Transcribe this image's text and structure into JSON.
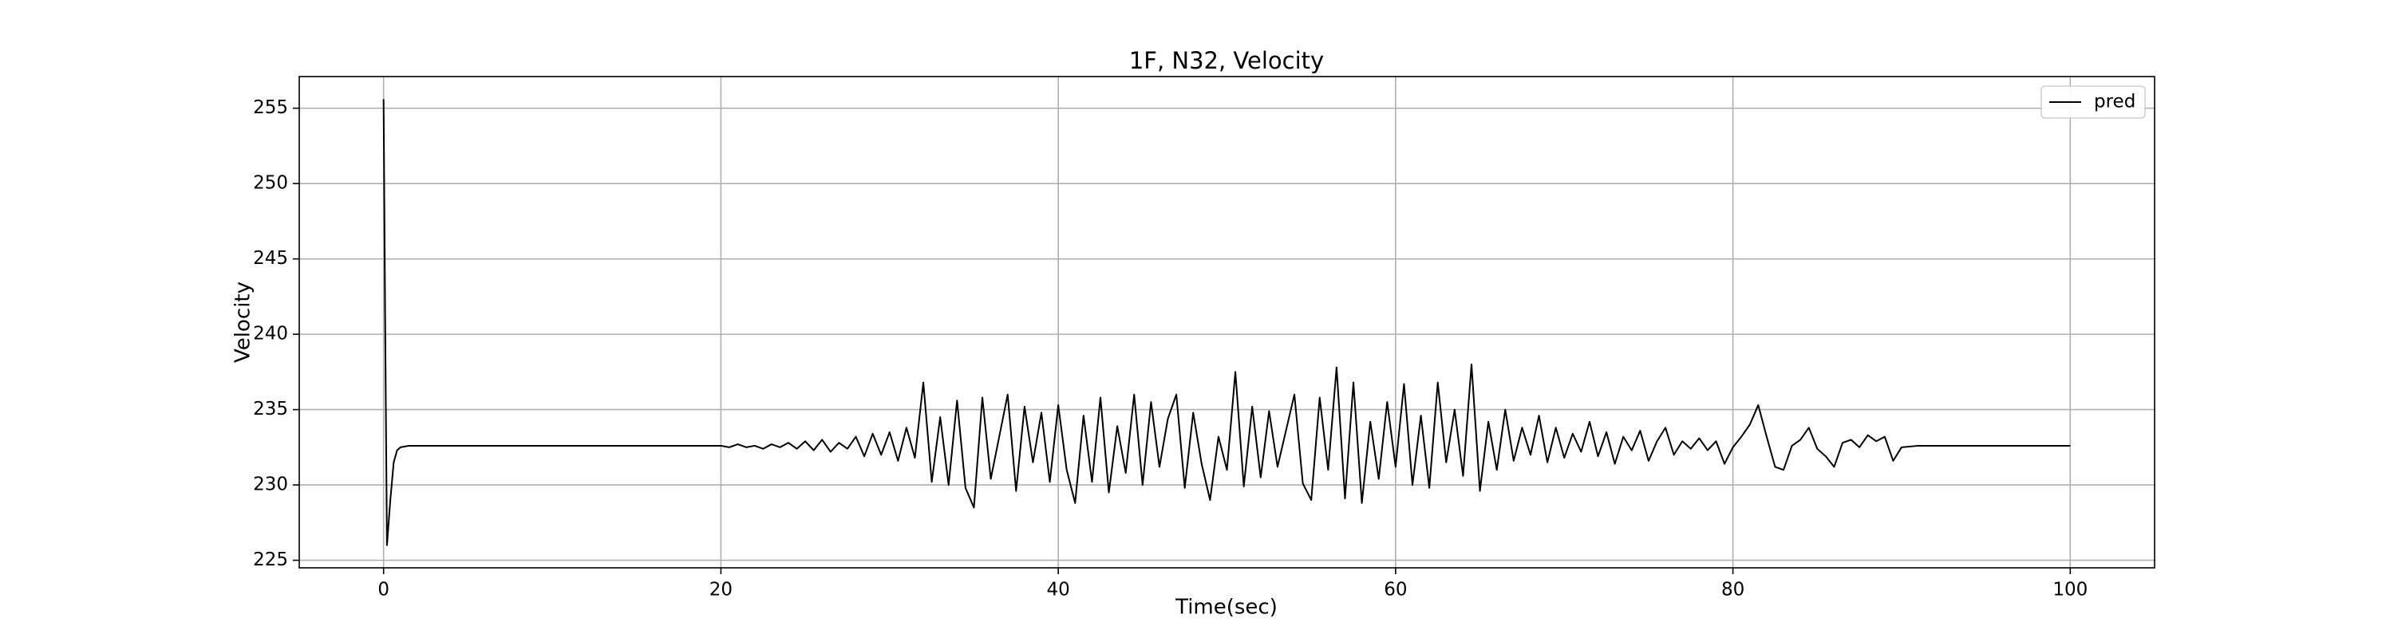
{
  "chart_data": {
    "type": "line",
    "title": "1F, N32, Velocity",
    "x_label": "Time(sec)",
    "y_label": "Velocity",
    "x": [
      0,
      0.1,
      0.2,
      0.4,
      0.6,
      0.8,
      1,
      1.5,
      2,
      5,
      10,
      15,
      20,
      20.5,
      21,
      21.5,
      22,
      22.5,
      23,
      23.5,
      24,
      24.5,
      25,
      25.5,
      26,
      26.5,
      27,
      27.5,
      28,
      28.5,
      29,
      29.5,
      30,
      30.5,
      31,
      31.5,
      32,
      32.5,
      33,
      33.5,
      34,
      34.5,
      35,
      35.5,
      36,
      36.5,
      37,
      37.5,
      38,
      38.5,
      39,
      39.5,
      40,
      40.5,
      41,
      41.5,
      42,
      42.5,
      43,
      43.5,
      44,
      44.5,
      45,
      45.5,
      46,
      46.5,
      47,
      47.5,
      48,
      48.5,
      49,
      49.5,
      50,
      50.5,
      51,
      51.5,
      52,
      52.5,
      53,
      53.5,
      54,
      54.5,
      55,
      55.5,
      56,
      56.5,
      57,
      57.5,
      58,
      58.5,
      59,
      59.5,
      60,
      60.5,
      61,
      61.5,
      62,
      62.5,
      63,
      63.5,
      64,
      64.5,
      65,
      65.5,
      66,
      66.5,
      67,
      67.5,
      68,
      68.5,
      69,
      69.5,
      70,
      70.5,
      71,
      71.5,
      72,
      72.5,
      73,
      73.5,
      74,
      74.5,
      75,
      75.5,
      76,
      76.5,
      77,
      77.5,
      78,
      78.5,
      79,
      79.5,
      80,
      80.5,
      81,
      81.5,
      82,
      82.5,
      83,
      83.5,
      84,
      84.5,
      85,
      85.5,
      86,
      86.5,
      87,
      87.5,
      88,
      88.5,
      89,
      89.5,
      90,
      91,
      95,
      100
    ],
    "series": [
      {
        "name": "pred",
        "color": "#000000",
        "values": [
          255.6,
          240,
          226,
          229,
          231.5,
          232.3,
          232.5,
          232.6,
          232.6,
          232.6,
          232.6,
          232.6,
          232.6,
          232.5,
          232.7,
          232.5,
          232.6,
          232.4,
          232.7,
          232.5,
          232.8,
          232.4,
          232.9,
          232.3,
          233.0,
          232.2,
          232.8,
          232.4,
          233.2,
          231.9,
          233.4,
          232.0,
          233.5,
          231.6,
          233.8,
          231.8,
          236.8,
          230.2,
          234.5,
          230.0,
          235.6,
          229.8,
          228.5,
          235.8,
          230.4,
          233.2,
          236.0,
          229.6,
          235.2,
          231.5,
          234.8,
          230.2,
          235.3,
          231.0,
          228.8,
          234.6,
          230.2,
          235.8,
          229.5,
          233.9,
          230.8,
          236.0,
          230.0,
          235.5,
          231.2,
          234.4,
          236.0,
          229.8,
          234.8,
          231.4,
          229.0,
          233.2,
          231.0,
          237.5,
          229.9,
          235.2,
          230.5,
          234.9,
          231.2,
          233.6,
          236.0,
          230.1,
          229.0,
          235.8,
          231.0,
          237.8,
          229.1,
          236.8,
          228.8,
          234.2,
          230.4,
          235.5,
          231.2,
          236.7,
          230.0,
          234.6,
          229.8,
          236.8,
          231.5,
          235.0,
          230.6,
          238.0,
          229.6,
          234.2,
          231.0,
          235.0,
          231.6,
          233.8,
          232.0,
          234.6,
          231.5,
          233.8,
          231.8,
          233.4,
          232.2,
          234.2,
          231.9,
          233.5,
          231.4,
          233.2,
          232.3,
          233.6,
          231.6,
          232.9,
          233.8,
          232.0,
          232.9,
          232.4,
          233.1,
          232.3,
          232.9,
          231.4,
          232.5,
          233.2,
          234.0,
          235.3,
          233.2,
          231.2,
          231.0,
          232.6,
          233.0,
          233.8,
          232.4,
          231.9,
          231.2,
          232.8,
          233.0,
          232.5,
          233.3,
          232.9,
          233.2,
          231.6,
          232.5,
          232.6,
          232.6,
          232.6
        ]
      }
    ],
    "xlim": [
      -5,
      105
    ],
    "ylim": [
      224.5,
      257.1
    ],
    "xticks": [
      0,
      20,
      40,
      60,
      80,
      100
    ],
    "yticks": [
      225,
      230,
      235,
      240,
      245,
      250,
      255
    ],
    "grid": true,
    "legend": "upper right"
  }
}
